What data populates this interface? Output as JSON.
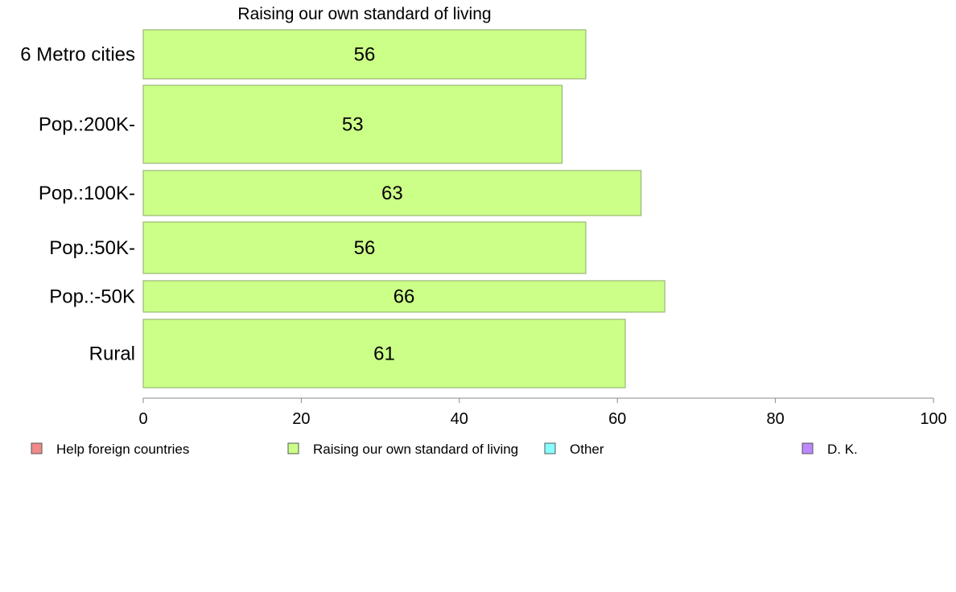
{
  "chart_data": {
    "type": "bar",
    "orientation": "horizontal",
    "title": "Raising our own standard of living",
    "categories": [
      "6 Metro cities",
      "Pop.:200K-",
      "Pop.:100K-",
      "Pop.:50K-",
      "Pop.:-50K",
      "Rural"
    ],
    "values": [
      56,
      53,
      63,
      56,
      66,
      61
    ],
    "value_labels": [
      "56",
      "53",
      "63",
      "56",
      "66",
      "61"
    ],
    "xlim": [
      0,
      100
    ],
    "xticks": [
      0,
      20,
      40,
      60,
      80,
      100
    ],
    "xtick_labels": [
      "0",
      "20",
      "40",
      "60",
      "80",
      "100"
    ],
    "bar_color": "#ccff88",
    "bar_stroke": "#88aa66",
    "legend": [
      {
        "label": "Help foreign countries",
        "color": "#f08a8a"
      },
      {
        "label": "Raising our own standard of living",
        "color": "#ccff88"
      },
      {
        "label": "Other",
        "color": "#88ffff"
      },
      {
        "label": "D. K.",
        "color": "#bb88ff"
      }
    ],
    "legend_position": "bottom",
    "grid": false
  }
}
